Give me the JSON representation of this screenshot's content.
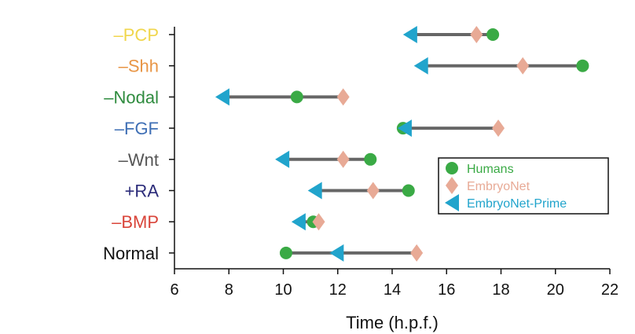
{
  "chart_data": {
    "type": "scatter",
    "xlabel": "Time (h.p.f.)",
    "xlim": [
      6,
      22
    ],
    "xticks": [
      6,
      8,
      10,
      12,
      14,
      16,
      18,
      20,
      22
    ],
    "categories": [
      {
        "label": "–PCP",
        "color": "#f0d64c"
      },
      {
        "label": "–Shh",
        "color": "#e89545"
      },
      {
        "label": "–Nodal",
        "color": "#2e8b3e"
      },
      {
        "label": "–FGF",
        "color": "#3f6fb5"
      },
      {
        "label": "–Wnt",
        "color": "#555555"
      },
      {
        "label": "+RA",
        "color": "#2c2c7a"
      },
      {
        "label": "–BMP",
        "color": "#d9453a"
      },
      {
        "label": "Normal",
        "color": "#111111"
      }
    ],
    "series": [
      {
        "name": "Humans",
        "marker": "circle",
        "color": "#3aaa45",
        "values": [
          17.7,
          21.0,
          10.5,
          14.4,
          13.2,
          14.6,
          11.1,
          10.1
        ]
      },
      {
        "name": "EmbryoNet",
        "marker": "diamond",
        "color": "#e8aa96",
        "values": [
          17.1,
          18.8,
          12.2,
          17.9,
          12.2,
          13.3,
          11.3,
          14.9
        ]
      },
      {
        "name": "EmbryoNet-Prime",
        "marker": "triangle-left",
        "color": "#21a4cc",
        "values": [
          14.4,
          14.8,
          7.5,
          14.2,
          9.7,
          10.9,
          10.3,
          11.7
        ]
      }
    ],
    "legend_position": "right",
    "grid": false
  },
  "colors": {
    "connector": "#666666",
    "axis": "#111111"
  }
}
